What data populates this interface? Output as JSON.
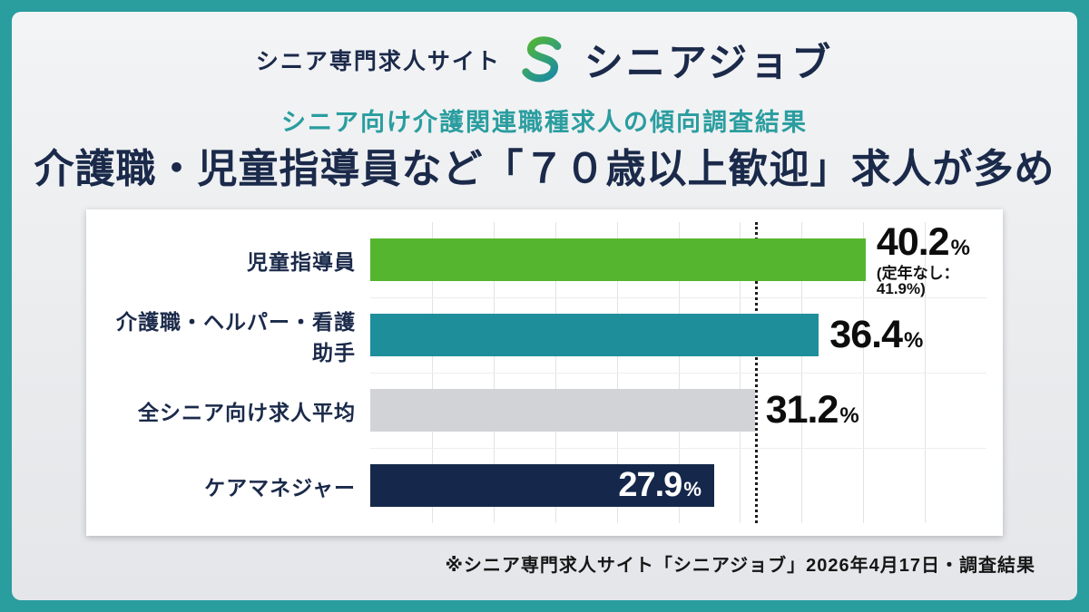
{
  "header": {
    "site_label": "シニア専門求人サイト",
    "brand": "シニアジョブ"
  },
  "subtitle": "シニア向け介護関連職種求人の傾向調査結果",
  "title": "介護職・児童指導員など「７０歳以上歓迎」求人が多め",
  "footnote": "※シニア専門求人サイト「シニアジョブ」2026年4月17日・調査結果",
  "colors": {
    "frame_teal": "#2A9D9F",
    "accent_teal": "#2A9D9F",
    "navy": "#1B2A4A",
    "bar_green": "#56B52F",
    "bar_teal": "#1F8E9B",
    "bar_gray": "#D2D3D6",
    "bar_navy": "#15284B"
  },
  "chart_data": {
    "type": "bar",
    "orientation": "horizontal",
    "title": "介護職・児童指導員など「７０歳以上歓迎」求人が多め",
    "categories": [
      "児童指導員",
      "介護職・ヘルパー・看護助手",
      "全シニア向け求人平均",
      "ケアマネジャー"
    ],
    "values": [
      40.2,
      36.4,
      31.2,
      27.9
    ],
    "unit": "%",
    "xlim": [
      0,
      50
    ],
    "grid": {
      "vertical_divisions": 10,
      "horizontal_divisions": 4
    },
    "reference_line": {
      "value": 31.2,
      "style": "dotted",
      "meaning": "全シニア向け求人平均"
    },
    "bars": [
      {
        "label": "児童指導員",
        "value": 40.2,
        "display": "40.2",
        "color": "#56B52F",
        "note": "(定年なし：41.9%)",
        "value_inside": false
      },
      {
        "label": "介護職・ヘルパー・看護助手",
        "value": 36.4,
        "display": "36.4",
        "color": "#1F8E9B",
        "note": "",
        "value_inside": false
      },
      {
        "label": "全シニア向け求人平均",
        "value": 31.2,
        "display": "31.2",
        "color": "#D2D3D6",
        "note": "",
        "value_inside": false
      },
      {
        "label": "ケアマネジャー",
        "value": 27.9,
        "display": "27.9",
        "color": "#15284B",
        "note": "",
        "value_inside": true
      }
    ]
  }
}
